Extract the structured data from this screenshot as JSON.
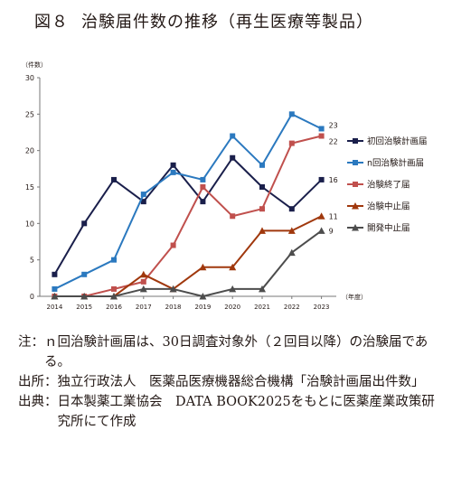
{
  "title": {
    "fig": "図８",
    "text": "治験届件数の推移（再生医療等製品）"
  },
  "chart_data": {
    "type": "line",
    "ylabel": "（件数）",
    "xlabel": "（年度）",
    "ylim": [
      0,
      30
    ],
    "yticks": [
      0,
      5,
      10,
      15,
      20,
      25,
      30
    ],
    "x": [
      "2014",
      "2015",
      "2016",
      "2017",
      "2018",
      "2019",
      "2020",
      "2021",
      "2022",
      "2023"
    ],
    "grid": false,
    "legend_position": "right",
    "series": [
      {
        "name": "初回治験計画届",
        "color": "#1a1f4b",
        "marker": "square",
        "values": [
          3,
          10,
          16,
          13,
          18,
          13,
          19,
          15,
          12,
          16
        ],
        "end_label": "16"
      },
      {
        "name": "n回治験計画届",
        "color": "#2b79bf",
        "marker": "square",
        "values": [
          1,
          3,
          5,
          14,
          17,
          16,
          22,
          18,
          25,
          23
        ],
        "end_label": "23"
      },
      {
        "name": "治験終了届",
        "color": "#c0504d",
        "marker": "square",
        "values": [
          0,
          0,
          1,
          2,
          7,
          15,
          11,
          12,
          21,
          22
        ],
        "end_label": "22"
      },
      {
        "name": "治験中止届",
        "color": "#a0380d",
        "marker": "triangle",
        "values": [
          0,
          0,
          0,
          3,
          1,
          4,
          4,
          9,
          9,
          11
        ],
        "end_label": "11"
      },
      {
        "name": "開発中止届",
        "color": "#4d4d4d",
        "marker": "triangle",
        "values": [
          0,
          0,
          0,
          1,
          1,
          0,
          1,
          1,
          6,
          9
        ],
        "end_label": "9"
      }
    ]
  },
  "notes": [
    {
      "label": "注：",
      "text": "ｎ回治験計画届は、30日調査対象外（２回目以降）の治験届である。"
    },
    {
      "label": "出所：",
      "text": "独立行政法人　医薬品医療機器総合機構「治験計画届出件数」"
    },
    {
      "label": "出典：",
      "text": "日本製薬工業協会　DATA BOOK2025をもとに医薬産業政策研究所にて作成"
    }
  ]
}
